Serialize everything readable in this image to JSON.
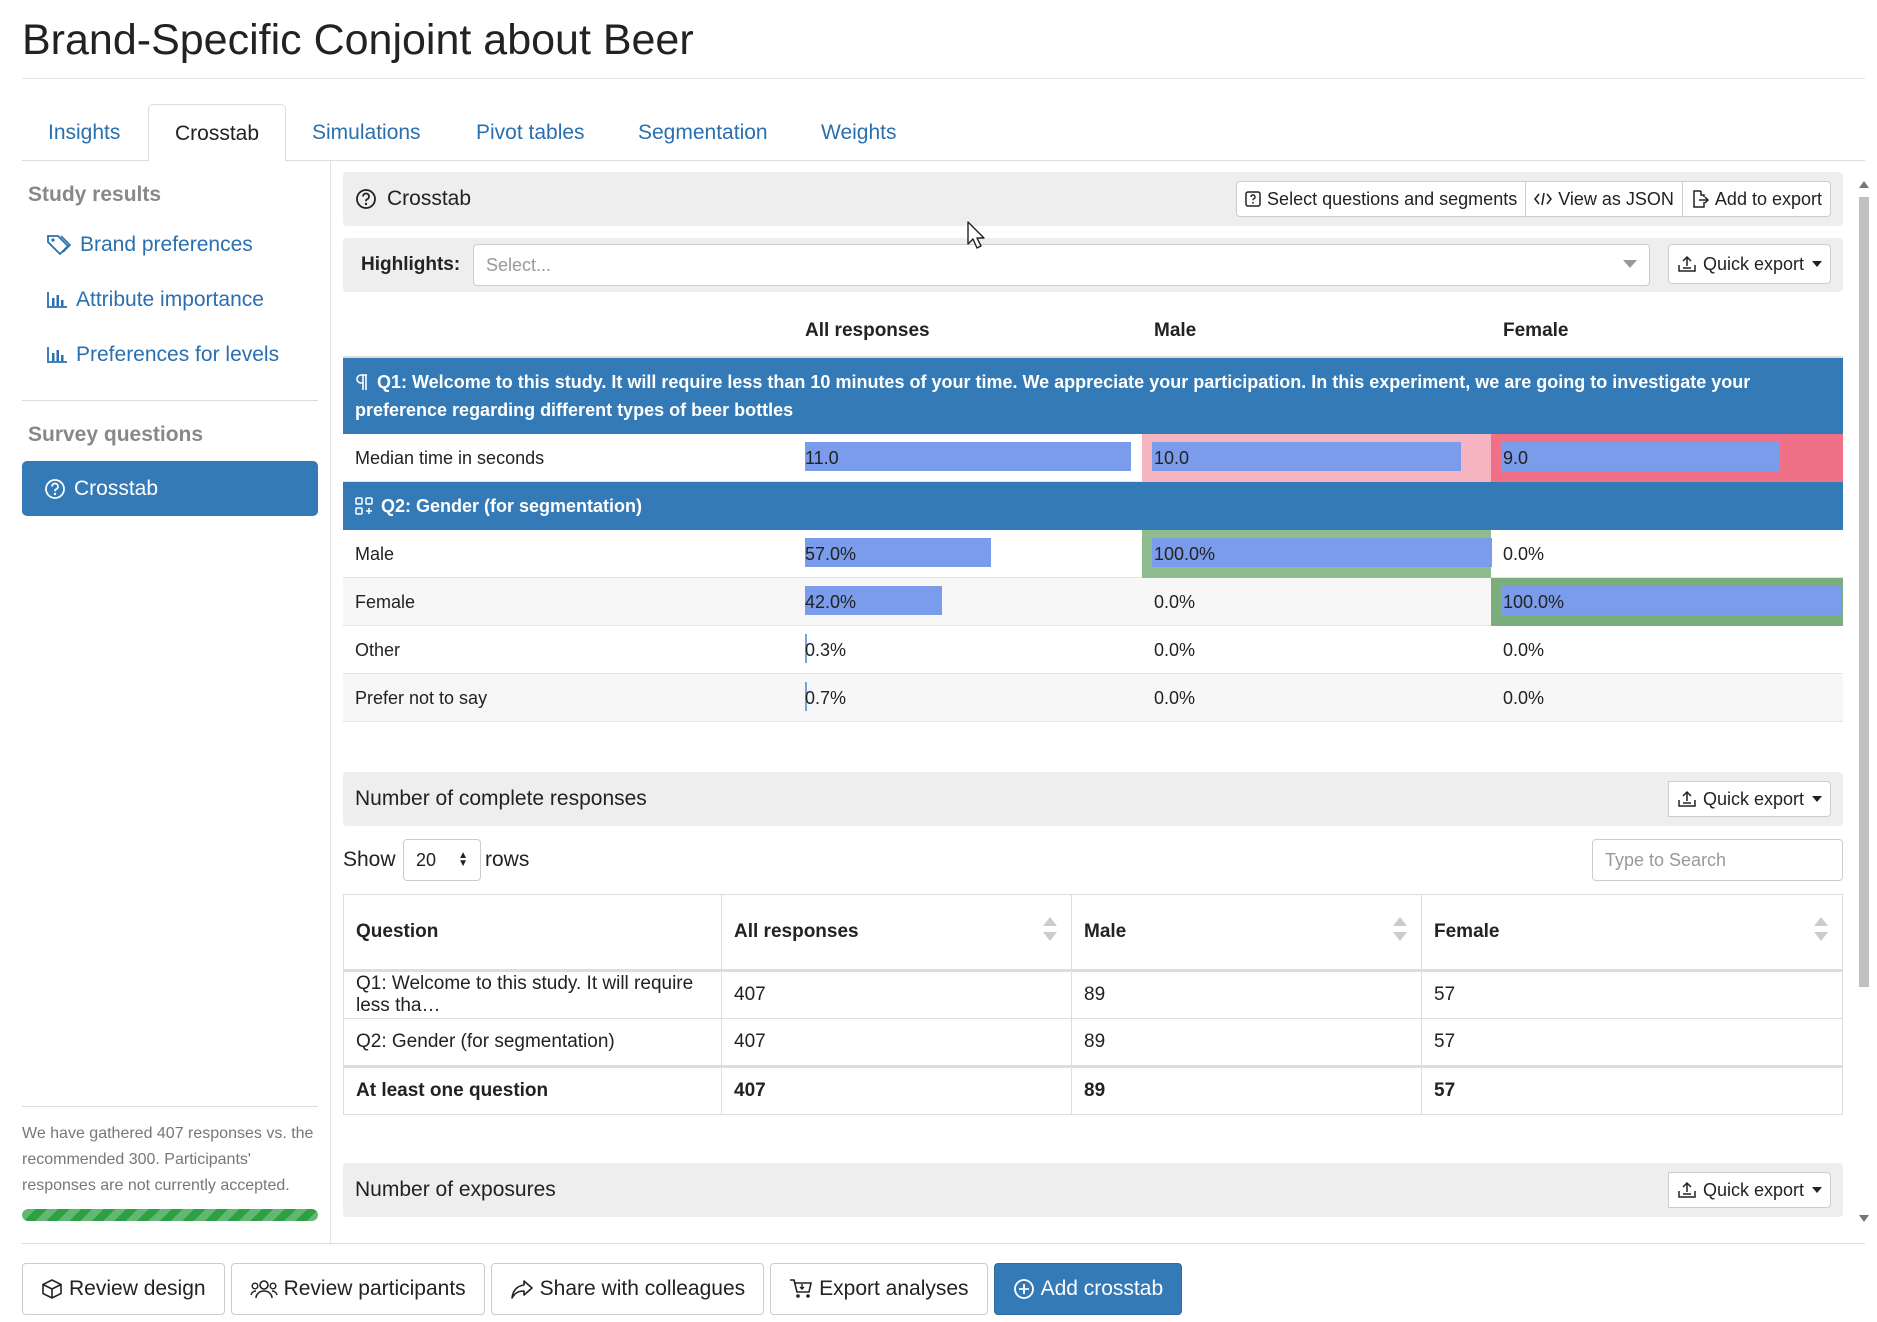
{
  "page_title": "Brand-Specific Conjoint about Beer",
  "tabs": [
    {
      "label": "Insights",
      "active": false
    },
    {
      "label": "Crosstab",
      "active": true
    },
    {
      "label": "Simulations",
      "active": false
    },
    {
      "label": "Pivot tables",
      "active": false
    },
    {
      "label": "Segmentation",
      "active": false
    },
    {
      "label": "Weights",
      "active": false
    }
  ],
  "sidebar": {
    "study_results_heading": "Study results",
    "study_results": [
      {
        "label": "Brand preferences",
        "icon": "tag-icon"
      },
      {
        "label": "Attribute importance",
        "icon": "bar-chart-icon"
      },
      {
        "label": "Preferences for levels",
        "icon": "bar-chart-icon"
      }
    ],
    "survey_questions_heading": "Survey questions",
    "survey_questions": [
      {
        "label": "Crosstab",
        "icon": "question-circle-icon",
        "active": true
      }
    ],
    "footer_text": "We have gathered 407 responses vs. the recommended 300. Participants' responses are not currently accepted.",
    "progress_percent": 100,
    "progress_color": "#2ea043"
  },
  "crosstab": {
    "title": "Crosstab",
    "buttons": {
      "select": "Select questions and segments",
      "json": "View as JSON",
      "export": "Add to export"
    },
    "highlights_label": "Highlights:",
    "highlights_placeholder": "Select...",
    "quick_export": "Quick export",
    "columns": [
      "All responses",
      "Male",
      "Female"
    ],
    "q1_title": "Q1: Welcome to this study. It will require less than 10 minutes of your time. We appreciate your participation. In this experiment, we are going to investigate your preference regarding different types of beer bottles",
    "q1_rows": [
      {
        "label": "Median time in seconds",
        "cells": [
          {
            "text": "11.0",
            "bar": 1.0,
            "bg": ""
          },
          {
            "text": "10.0",
            "bar": 0.909,
            "bg": "#f6b3c0"
          },
          {
            "text": "9.0",
            "bar": 0.818,
            "bg": "#f07088"
          }
        ]
      }
    ],
    "q2_title": "Q2: Gender (for segmentation)",
    "q2_rows": [
      {
        "label": "Male",
        "cells": [
          {
            "text": "57.0%",
            "bar": 0.57,
            "bg": ""
          },
          {
            "text": "100.0%",
            "bar": 1.0,
            "bg": "#8fbc8f"
          },
          {
            "text": "0.0%",
            "bar": 0,
            "bg": ""
          }
        ]
      },
      {
        "label": "Female",
        "cells": [
          {
            "text": "42.0%",
            "bar": 0.42,
            "bg": ""
          },
          {
            "text": "0.0%",
            "bar": 0,
            "bg": ""
          },
          {
            "text": "100.0%",
            "bar": 1.0,
            "bg": "#7cad7c"
          }
        ]
      },
      {
        "label": "Other",
        "cells": [
          {
            "text": "0.3%",
            "bar": 0.003,
            "bg": ""
          },
          {
            "text": "0.0%",
            "bar": 0,
            "bg": ""
          },
          {
            "text": "0.0%",
            "bar": 0,
            "bg": ""
          }
        ]
      },
      {
        "label": "Prefer not to say",
        "cells": [
          {
            "text": "0.7%",
            "bar": 0.007,
            "bg": ""
          },
          {
            "text": "0.0%",
            "bar": 0,
            "bg": ""
          },
          {
            "text": "0.0%",
            "bar": 0,
            "bg": ""
          }
        ]
      }
    ]
  },
  "responses": {
    "title": "Number of complete responses",
    "quick_export": "Quick export",
    "show_label": "Show",
    "rows_value": "20",
    "rows_label": "rows",
    "search_placeholder": "Type to Search",
    "headers": [
      "Question",
      "All responses",
      "Male",
      "Female"
    ],
    "rows": [
      [
        "Q1: Welcome to this study. It will require less tha…",
        "407",
        "89",
        "57"
      ],
      [
        "Q2: Gender (for segmentation)",
        "407",
        "89",
        "57"
      ]
    ],
    "total": [
      "At least one question",
      "407",
      "89",
      "57"
    ]
  },
  "exposures": {
    "title": "Number of exposures",
    "quick_export": "Quick export"
  },
  "bottom_bar": {
    "review_design": "Review design",
    "review_participants": "Review participants",
    "share": "Share with colleagues",
    "export": "Export analyses",
    "add_crosstab": "Add crosstab"
  }
}
